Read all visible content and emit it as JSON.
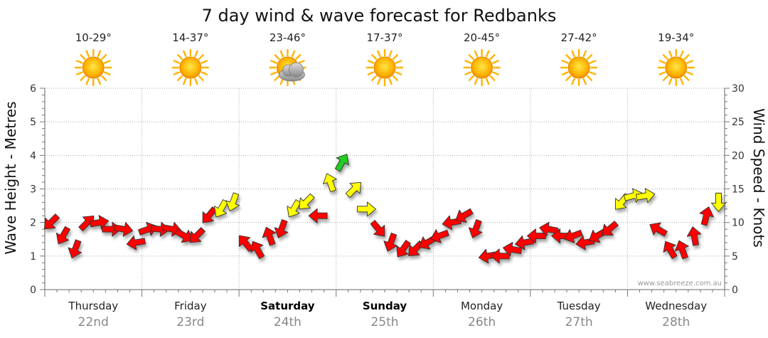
{
  "chart_data": {
    "type": "line",
    "title": "7 day wind & wave forecast for Redbanks",
    "ylabel_left": "Wave Height - Metres",
    "ylabel_right": "Wind Speed - Knots",
    "ylim_left": [
      0,
      6
    ],
    "ylim_right": [
      0,
      30
    ],
    "yticks_left": [
      "0",
      "1",
      "2",
      "3",
      "4",
      "5",
      "6"
    ],
    "yticks_right": [
      "0",
      "5",
      "10",
      "15",
      "20",
      "25",
      "30"
    ],
    "watermark": "www.seabreeze.com.au",
    "days": [
      {
        "day": "Thursday",
        "date": "22nd",
        "temp": "10-29°",
        "icon": "sun-icon",
        "bold": false
      },
      {
        "day": "Friday",
        "date": "23rd",
        "temp": "14-37°",
        "icon": "sun-icon",
        "bold": false
      },
      {
        "day": "Saturday",
        "date": "24th",
        "temp": "23-46°",
        "icon": "sun-cloud-icon",
        "bold": true
      },
      {
        "day": "Sunday",
        "date": "25th",
        "temp": "17-37°",
        "icon": "sun-icon",
        "bold": true
      },
      {
        "day": "Monday",
        "date": "26th",
        "temp": "20-45°",
        "icon": "sun-icon",
        "bold": false
      },
      {
        "day": "Tuesday",
        "date": "27th",
        "temp": "27-42°",
        "icon": "sun-icon",
        "bold": false
      },
      {
        "day": "Wednesday",
        "date": "28th",
        "temp": "19-34°",
        "icon": "sun-icon",
        "bold": false
      }
    ],
    "colors": {
      "low": "#ff0000",
      "mid": "#ffff00",
      "high": "#22cc22",
      "grid": "#aaaaaa",
      "sun": "#ffb300"
    },
    "series": [
      {
        "name": "Wind (knots) with direction (deg)",
        "x_hours": [
          0,
          3,
          6,
          9,
          12,
          15,
          18,
          21,
          24,
          27,
          30,
          33,
          36,
          39,
          42,
          45,
          48,
          51,
          54,
          57,
          60,
          63,
          66,
          69,
          72,
          75,
          78,
          81,
          84,
          87,
          90,
          93,
          96,
          99,
          102,
          105,
          108,
          111,
          114,
          117,
          120,
          123,
          126,
          129,
          132,
          135,
          138,
          141,
          144,
          147,
          150,
          153,
          156,
          159,
          162,
          165
        ],
        "speed": [
          10,
          8,
          6,
          10,
          10,
          9,
          9,
          7,
          9,
          9,
          9,
          8,
          8,
          11,
          12,
          13,
          7,
          6,
          8,
          9,
          12,
          13,
          11,
          16,
          19,
          15,
          12,
          9,
          7,
          6,
          6,
          7,
          8,
          10,
          11,
          9,
          5,
          5,
          6,
          7,
          8,
          9,
          8,
          8,
          7,
          8,
          9,
          13,
          14,
          14,
          9,
          6,
          6,
          8,
          11,
          13
        ],
        "direction": [
          225,
          210,
          200,
          45,
          80,
          90,
          100,
          260,
          70,
          95,
          100,
          120,
          225,
          220,
          210,
          200,
          320,
          330,
          340,
          200,
          210,
          225,
          270,
          340,
          30,
          45,
          90,
          140,
          200,
          215,
          225,
          240,
          250,
          260,
          240,
          200,
          260,
          270,
          280,
          260,
          270,
          280,
          270,
          250,
          260,
          240,
          230,
          220,
          75,
          80,
          300,
          330,
          340,
          350,
          15,
          180
        ]
      }
    ]
  }
}
